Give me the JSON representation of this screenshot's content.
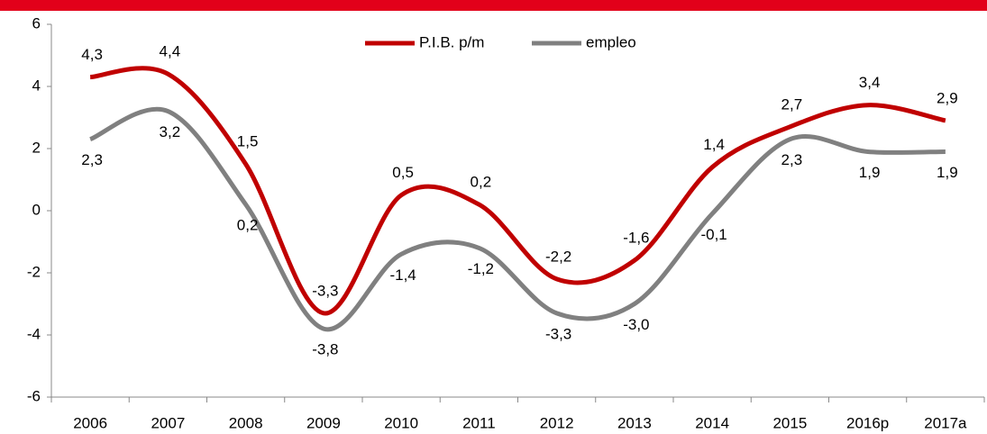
{
  "chart_data": {
    "type": "line",
    "categories": [
      "2006",
      "2007",
      "2008",
      "2009",
      "2010",
      "2011",
      "2012",
      "2013",
      "2014",
      "2015",
      "2016p",
      "2017a"
    ],
    "series": [
      {
        "name": "P.I.B. p/m",
        "color": "#c00000",
        "values": [
          4.3,
          4.4,
          1.5,
          -3.3,
          0.5,
          0.2,
          -2.2,
          -1.6,
          1.4,
          2.7,
          3.4,
          2.9
        ],
        "value_labels": [
          "4,3",
          "4,4",
          "1,5",
          "-3,3",
          "0,5",
          "0,2",
          "-2,2",
          "-1,6",
          "1,4",
          "2,7",
          "3,4",
          "2,9"
        ]
      },
      {
        "name": "empleo",
        "color": "#808080",
        "values": [
          2.3,
          3.2,
          0.2,
          -3.8,
          -1.4,
          -1.2,
          -3.3,
          -3.0,
          -0.1,
          2.3,
          1.9,
          1.9
        ],
        "value_labels": [
          "2,3",
          "3,2",
          "0,2",
          "-3,8",
          "-1,4",
          "-1,2",
          "-3,3",
          "-3,0",
          "-0,1",
          "2,3",
          "1,9",
          "1,9"
        ]
      }
    ],
    "ylim": [
      -6,
      6
    ],
    "yticks": [
      -6,
      -4,
      -2,
      0,
      2,
      4,
      6
    ],
    "legend": "top",
    "smooth": true
  }
}
